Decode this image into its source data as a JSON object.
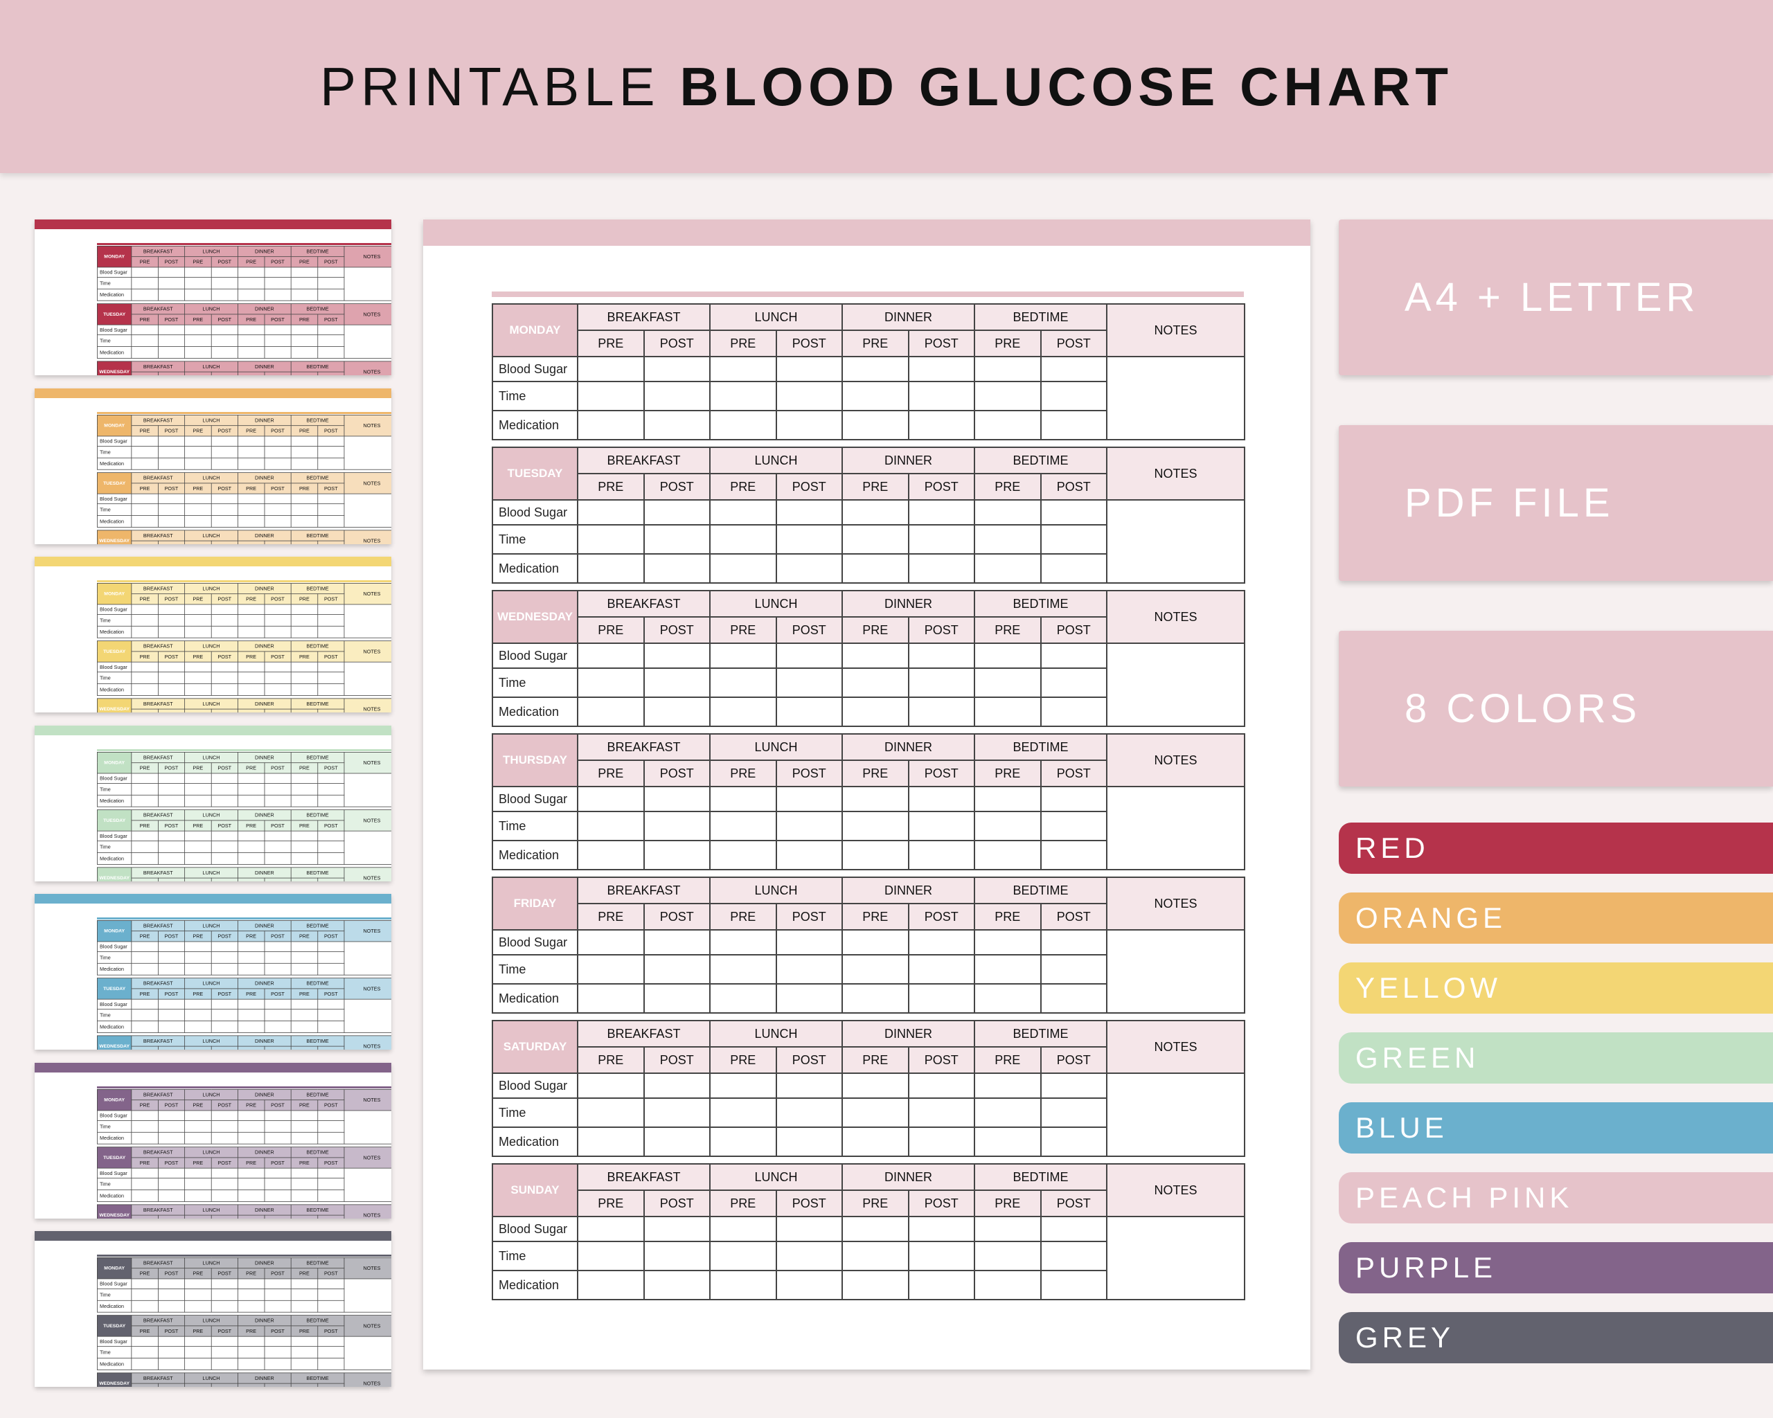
{
  "title": {
    "light": "PRINTABLE",
    "bold": "BLOOD GLUCOSE CHART"
  },
  "features": [
    "A4 + LETTER",
    "PDF FILE",
    "8 COLORS"
  ],
  "colors": [
    {
      "name": "RED",
      "hex": "#b5334b"
    },
    {
      "name": "ORANGE",
      "hex": "#eeb66a"
    },
    {
      "name": "YELLOW",
      "hex": "#f3d674"
    },
    {
      "name": "GREEN",
      "hex": "#c1e1c4"
    },
    {
      "name": "BLUE",
      "hex": "#6bb0cd"
    },
    {
      "name": "PEACH PINK",
      "hex": "#e6c3ca"
    },
    {
      "name": "PURPLE",
      "hex": "#83648a"
    },
    {
      "name": "GREY",
      "hex": "#62626e"
    }
  ],
  "thumbnails": [
    "RED",
    "ORANGE",
    "YELLOW",
    "GREEN",
    "BLUE",
    "PURPLE",
    "GREY"
  ],
  "sheet": {
    "accent": "#e6c3ca",
    "header_tint": "#f5e6e9",
    "days": [
      "MONDAY",
      "TUESDAY",
      "WEDNESDAY",
      "THURSDAY",
      "FRIDAY",
      "SATURDAY",
      "SUNDAY"
    ],
    "meals": [
      "BREAKFAST",
      "LUNCH",
      "DINNER",
      "BEDTIME"
    ],
    "sub": [
      "PRE",
      "POST"
    ],
    "notes": "NOTES",
    "rows": [
      "Blood Sugar",
      "Time",
      "Medication"
    ]
  }
}
